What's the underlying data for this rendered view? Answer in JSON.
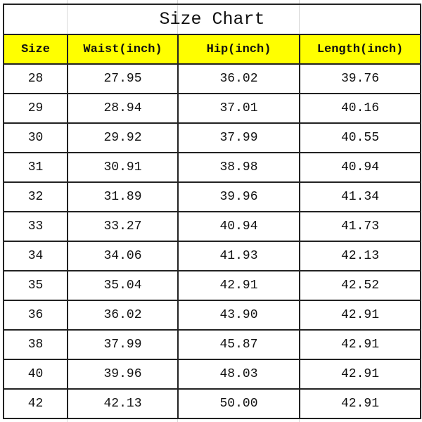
{
  "title": "Size Chart",
  "columns": [
    "Size",
    "Waist(inch)",
    "Hip(inch)",
    "Length(inch)"
  ],
  "header_color": "#ffff00",
  "rows": [
    [
      "28",
      "27.95",
      "36.02",
      "39.76"
    ],
    [
      "29",
      "28.94",
      "37.01",
      "40.16"
    ],
    [
      "30",
      "29.92",
      "37.99",
      "40.55"
    ],
    [
      "31",
      "30.91",
      "38.98",
      "40.94"
    ],
    [
      "32",
      "31.89",
      "39.96",
      "41.34"
    ],
    [
      "33",
      "33.27",
      "40.94",
      "41.73"
    ],
    [
      "34",
      "34.06",
      "41.93",
      "42.13"
    ],
    [
      "35",
      "35.04",
      "42.91",
      "42.52"
    ],
    [
      "36",
      "36.02",
      "43.90",
      "42.91"
    ],
    [
      "38",
      "37.99",
      "45.87",
      "42.91"
    ],
    [
      "40",
      "39.96",
      "48.03",
      "42.91"
    ],
    [
      "42",
      "42.13",
      "50.00",
      "42.91"
    ]
  ]
}
